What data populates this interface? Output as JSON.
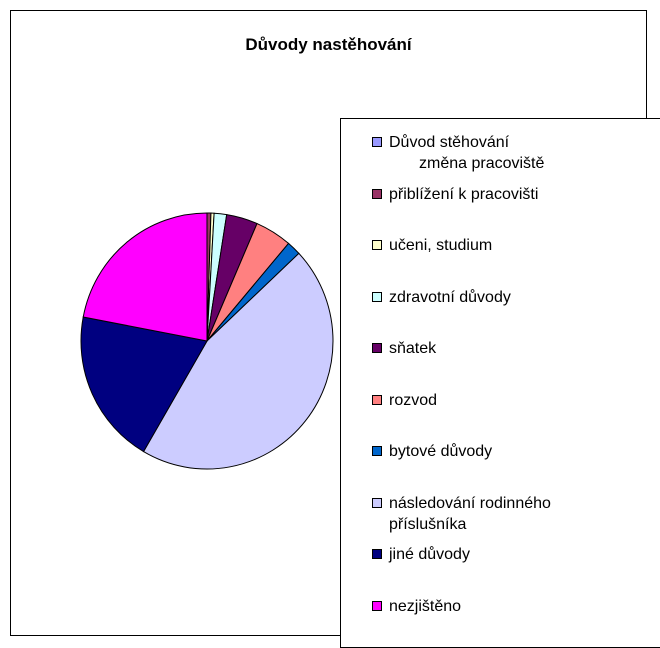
{
  "chart_data": {
    "type": "pie",
    "title": "Důvody nastěhování",
    "legend_position": "right",
    "slices": [
      {
        "label": "Důvod stěhování",
        "sublabel": "změna pracoviště",
        "value": 0.0,
        "color": "#9999FF"
      },
      {
        "label": "přiblížení k pracovišti",
        "value": 0.5,
        "color": "#993366"
      },
      {
        "label": "učeni, studium",
        "value": 0.4,
        "color": "#FFFFCC"
      },
      {
        "label": "zdravotní důvody",
        "value": 1.6,
        "color": "#CCFFFF"
      },
      {
        "label": "sňatek",
        "value": 4.0,
        "color": "#660066"
      },
      {
        "label": "rozvod",
        "value": 4.7,
        "color": "#FF8080"
      },
      {
        "label": "bytové důvody",
        "value": 1.8,
        "color": "#0066CC"
      },
      {
        "label": "následování rodinného",
        "sublabel": "příslušníka",
        "value": 45.4,
        "color": "#CCCCFF"
      },
      {
        "label": "jiné důvody",
        "value": 19.6,
        "color": "#000080"
      },
      {
        "label": "nezjištěno",
        "value": 22.0,
        "color": "#FF00FF"
      }
    ]
  }
}
